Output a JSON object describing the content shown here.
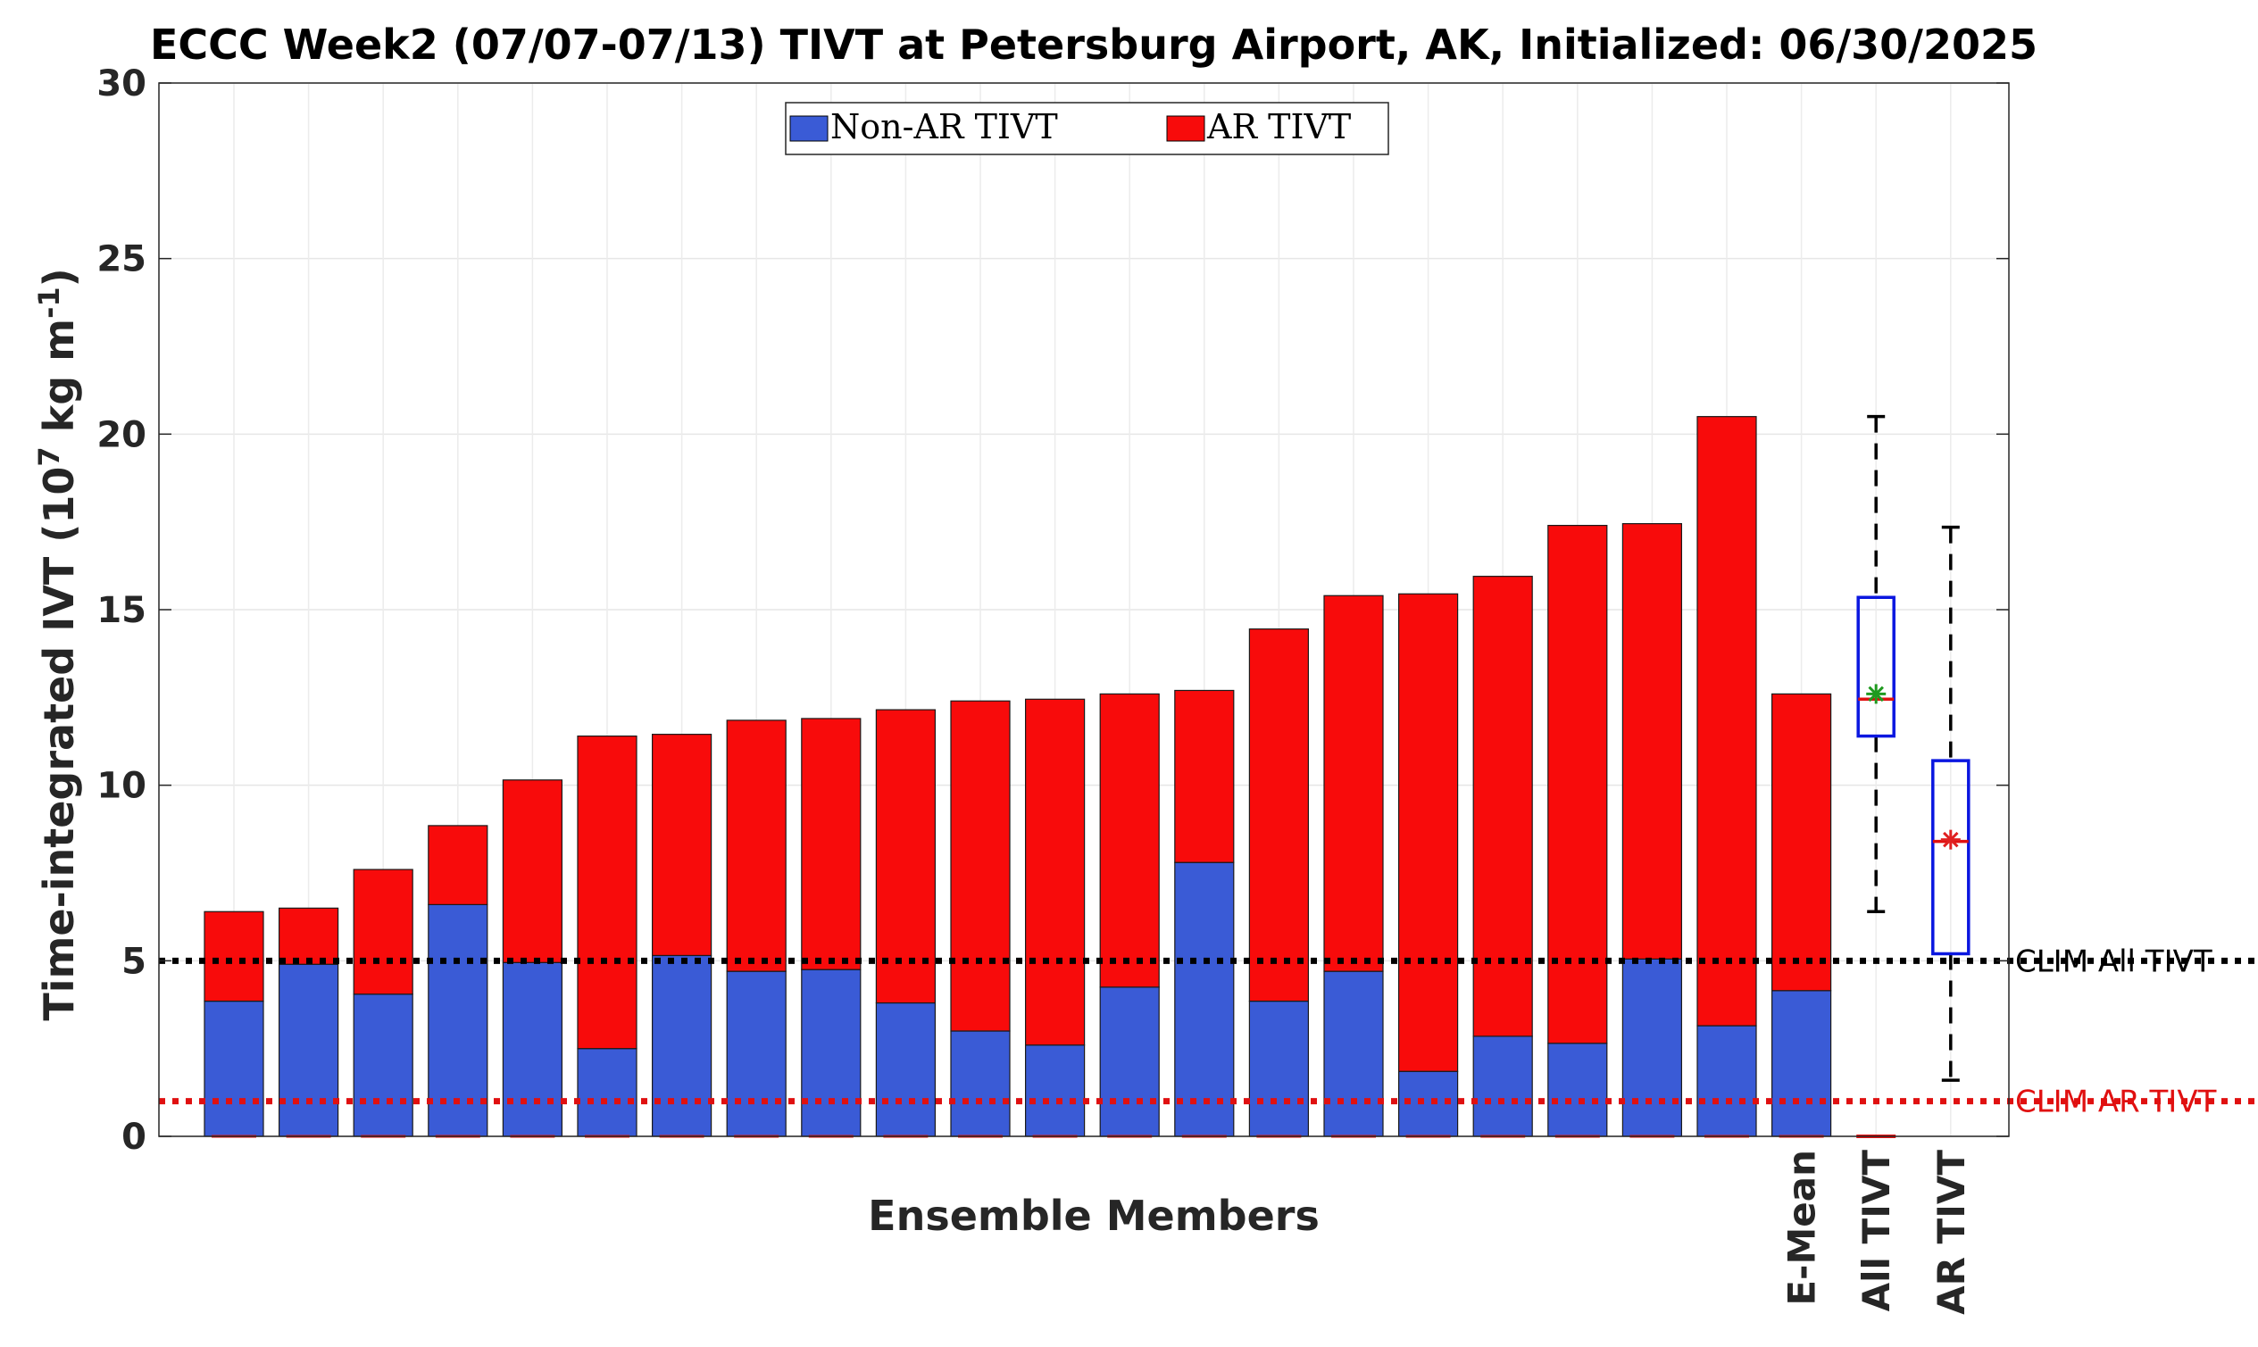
{
  "chart_data": {
    "type": "bar",
    "stacked": true,
    "title": "ECCC Week2 (07/07-07/13) TIVT at Petersburg Airport, AK, Initialized: 06/30/2025",
    "xlabel": "Ensemble Members",
    "ylabel": "Time-integrated IVT (10",
    "ylabel_sup1": "7",
    "ylabel_mid": " kg m",
    "ylabel_sup2": "-1",
    "ylabel_end": ")",
    "ylim": [
      0,
      30
    ],
    "yticks": [
      "0",
      "5",
      "10",
      "15",
      "20",
      "25",
      "30"
    ],
    "grid": true,
    "legend_position": "top-center",
    "series": [
      {
        "name": "Non-AR TIVT",
        "color": "#3a5bd6",
        "values": [
          3.85,
          4.9,
          4.05,
          6.6,
          4.95,
          2.5,
          5.15,
          4.7,
          4.75,
          3.8,
          3.0,
          2.6,
          4.25,
          7.8,
          3.85,
          4.7,
          1.85,
          2.85,
          2.65,
          5.05,
          3.15,
          4.15
        ]
      },
      {
        "name": "AR TIVT",
        "color": "#f80b0b",
        "values": [
          2.55,
          1.6,
          3.55,
          2.25,
          5.2,
          8.9,
          6.3,
          7.15,
          7.15,
          8.35,
          9.4,
          9.85,
          8.35,
          4.9,
          10.6,
          10.7,
          13.6,
          13.1,
          14.75,
          12.4,
          17.35,
          8.45
        ]
      }
    ],
    "category_labels": [
      "E-Mean",
      "All TIVT",
      "AR TIVT"
    ],
    "boxplots": [
      {
        "label": "All TIVT",
        "min": 6.4,
        "q1": 11.4,
        "median": 12.45,
        "q3": 15.35,
        "max": 20.5,
        "mean": 12.6,
        "mean_color": "#1f9a1f"
      },
      {
        "label": "AR TIVT",
        "min": 1.6,
        "q1": 5.2,
        "median": 8.4,
        "q3": 10.7,
        "max": 17.35,
        "mean": 8.45,
        "mean_color": "#e02020"
      }
    ],
    "reference_lines": [
      {
        "label": "CLIM All TIVT",
        "value": 5.0,
        "color": "#000000"
      },
      {
        "label": "CLIM AR TIVT",
        "value": 1.0,
        "color": "#e01010"
      }
    ]
  }
}
